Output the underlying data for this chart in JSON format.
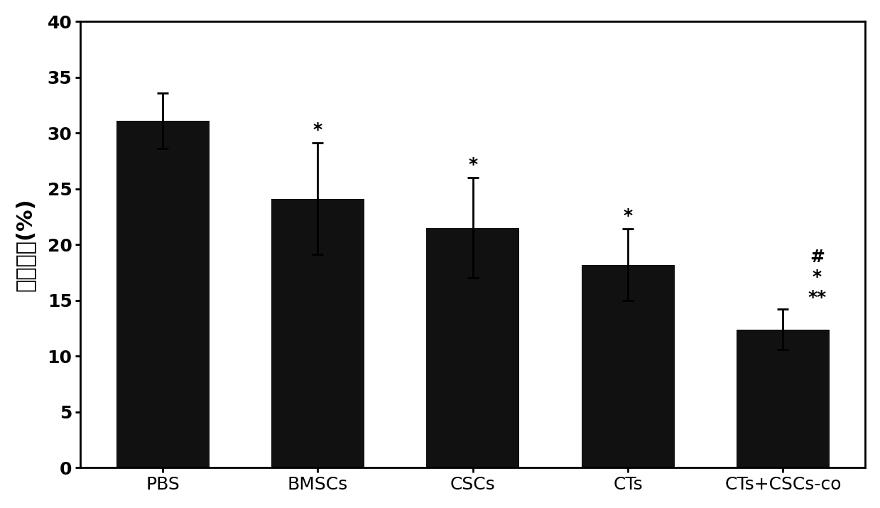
{
  "categories": [
    "PBS",
    "BMSCs",
    "CSCs",
    "CTs",
    "CTs+CSCs-co"
  ],
  "values": [
    31.1,
    24.1,
    21.5,
    18.2,
    12.4
  ],
  "errors": [
    2.5,
    5.0,
    4.5,
    3.2,
    1.8
  ],
  "bar_color": "#111111",
  "ylabel": "梗死面积(%)",
  "ylim": [
    0,
    40
  ],
  "yticks": [
    0,
    5,
    10,
    15,
    20,
    25,
    30,
    35,
    40
  ],
  "annot_texts": [
    "",
    "*",
    "*",
    "*",
    ""
  ],
  "annot_last": [
    "#",
    "*",
    "**"
  ],
  "bar_width": 0.6,
  "figure_bg": "#ffffff",
  "axes_bg": "#ffffff",
  "tick_fontsize": 18,
  "ylabel_fontsize": 22,
  "xlabel_fontsize": 18,
  "annot_fontsize": 18,
  "spine_linewidth": 2.0,
  "capsize": 6
}
